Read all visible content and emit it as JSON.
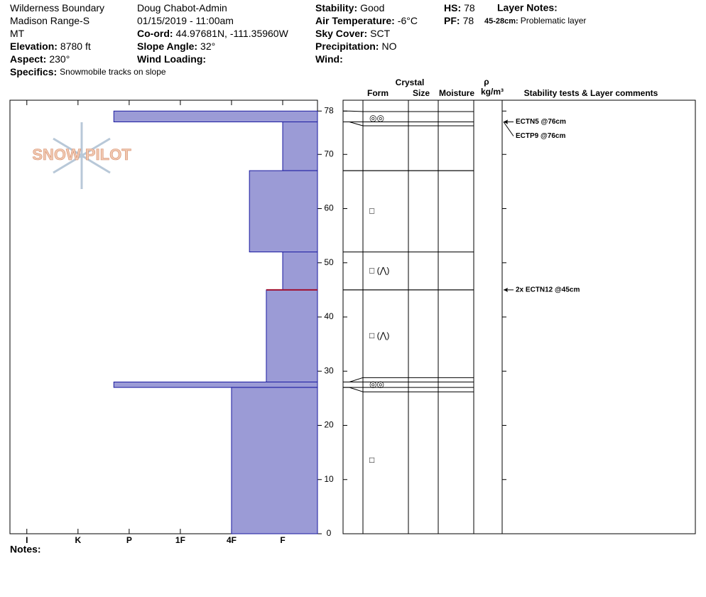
{
  "header": {
    "columns": [
      [
        {
          "value": "Wilderness Boundary"
        },
        {
          "value": "Madison Range-S"
        },
        {
          "value": "MT"
        },
        {
          "label": "Elevation:",
          "value": "8780 ft"
        },
        {
          "label": "Aspect:",
          "value": "230°"
        }
      ],
      [
        {
          "value": "Doug Chabot-Admin"
        },
        {
          "value": "01/15/2019 - 11:00am"
        },
        {
          "label": "Co-ord:",
          "value": "44.97681N, -111.35960W"
        },
        {
          "label": "Slope Angle:",
          "value": "32°"
        },
        {
          "label": "Wind Loading:"
        }
      ],
      [
        {
          "label": "Stability:",
          "value": "Good"
        },
        {
          "label": "Air Temperature:",
          "value": "-6°C"
        },
        {
          "label": "Sky Cover:",
          "value": "SCT"
        },
        {
          "label": "Precipitation:",
          "value": "NO"
        },
        {
          "label": "Wind:"
        }
      ],
      [
        {
          "label": "HS:",
          "value": "78"
        },
        {
          "label": "PF:",
          "value": "78"
        }
      ]
    ],
    "specifics": {
      "label": "Specifics:",
      "value": "Snowmobile tracks on slope"
    },
    "layer_notes": {
      "title": "Layer Notes:",
      "label": "45-28cm:",
      "value": "Problematic layer"
    }
  },
  "table_header": {
    "crystal": "Crystal",
    "form": "Form",
    "size": "Size",
    "moisture": "Moisture",
    "rho": "ρ",
    "density": "kg/m³",
    "tests": "Stability tests & Layer comments"
  },
  "notes": "Notes:",
  "logo": "SNOW PILOT",
  "chart_data": {
    "type": "hardness-profile",
    "ylim": [
      0,
      80
    ],
    "yticks": [
      0,
      10,
      20,
      30,
      40,
      50,
      60,
      70,
      78
    ],
    "xlim": [
      6.33,
      0.32
    ],
    "xticks": [
      {
        "value": 6,
        "label": "I"
      },
      {
        "value": 5,
        "label": "K"
      },
      {
        "value": 4,
        "label": "P"
      },
      {
        "value": 3,
        "label": "1F"
      },
      {
        "value": 2,
        "label": "4F"
      },
      {
        "value": 1,
        "label": "F"
      }
    ],
    "color": "#9b9bd6",
    "edge_color": "#1a1aa0",
    "problem_color": "#a01030",
    "layers": [
      {
        "top": 78,
        "bottom": 76,
        "hardness": 4.3,
        "form": "◎◎"
      },
      {
        "top": 76,
        "bottom": 67,
        "hardness": 1
      },
      {
        "top": 67,
        "bottom": 52,
        "hardness": 1.65,
        "form": "□"
      },
      {
        "top": 52,
        "bottom": 45,
        "hardness": 1,
        "form": "□ (⋀)"
      },
      {
        "top": 45,
        "bottom": 28,
        "hardness": 1.32,
        "form": "□ (⋀)",
        "problematic": true
      },
      {
        "top": 28,
        "bottom": 27,
        "hardness": 4.3,
        "form": "◎◎"
      },
      {
        "top": 27,
        "bottom": 0,
        "hardness": 2,
        "form": "□"
      }
    ],
    "tests": [
      {
        "label": "ECTN5 @76cm",
        "depth": 76
      },
      {
        "label": "ECTP9 @76cm",
        "depth": 76
      },
      {
        "label": "2x ECTN12 @45cm",
        "depth": 45
      }
    ]
  }
}
